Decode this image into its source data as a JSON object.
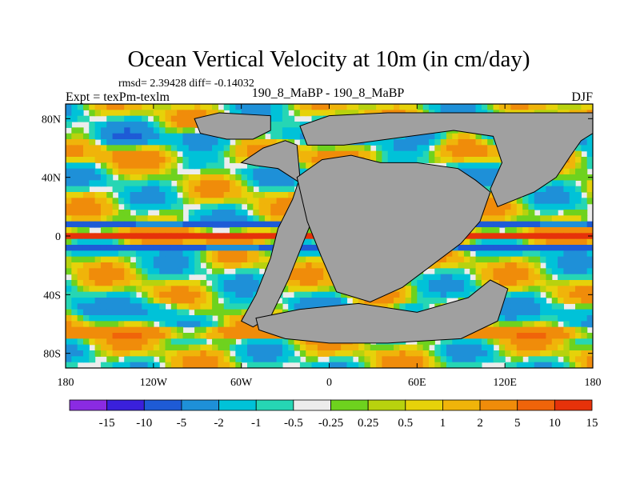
{
  "chart_data": {
    "type": "heatmap",
    "title": "Ocean Vertical Velocity at 10m (in cm/day)",
    "stats_line": "rmsd= 2.39428 diff= -0.14032",
    "left_label": "Expt = texPm-texlm",
    "center_label": "190_8_MaBP - 190_8_MaBP",
    "right_label": "DJF",
    "xlim": [
      -180,
      180
    ],
    "ylim": [
      -90,
      90
    ],
    "x_ticks": [
      {
        "value": -180,
        "label": "180"
      },
      {
        "value": -120,
        "label": "120W"
      },
      {
        "value": -60,
        "label": "60W"
      },
      {
        "value": 0,
        "label": "0"
      },
      {
        "value": 60,
        "label": "60E"
      },
      {
        "value": 120,
        "label": "120E"
      },
      {
        "value": 180,
        "label": "180"
      }
    ],
    "y_ticks": [
      {
        "value": 80,
        "label": "80N"
      },
      {
        "value": 40,
        "label": "40N"
      },
      {
        "value": 0,
        "label": "0"
      },
      {
        "value": -40,
        "label": "40S"
      },
      {
        "value": -80,
        "label": "80S"
      }
    ],
    "land_color": "#a0a0a0",
    "colorbar": {
      "colors": [
        "#8a2be2",
        "#3a20dc",
        "#1e5bd6",
        "#1e90d8",
        "#00c2d8",
        "#26d6b4",
        "#ececec",
        "#6ed21e",
        "#b8d20e",
        "#e6d20a",
        "#f0b40a",
        "#f08c0a",
        "#f0640a",
        "#e6320a"
      ],
      "labels": [
        "-15",
        "-10",
        "-5",
        "-2",
        "-1",
        "-0.5",
        "-0.25",
        "0.25",
        "0.5",
        "1",
        "2",
        "5",
        "10",
        "15"
      ]
    }
  }
}
